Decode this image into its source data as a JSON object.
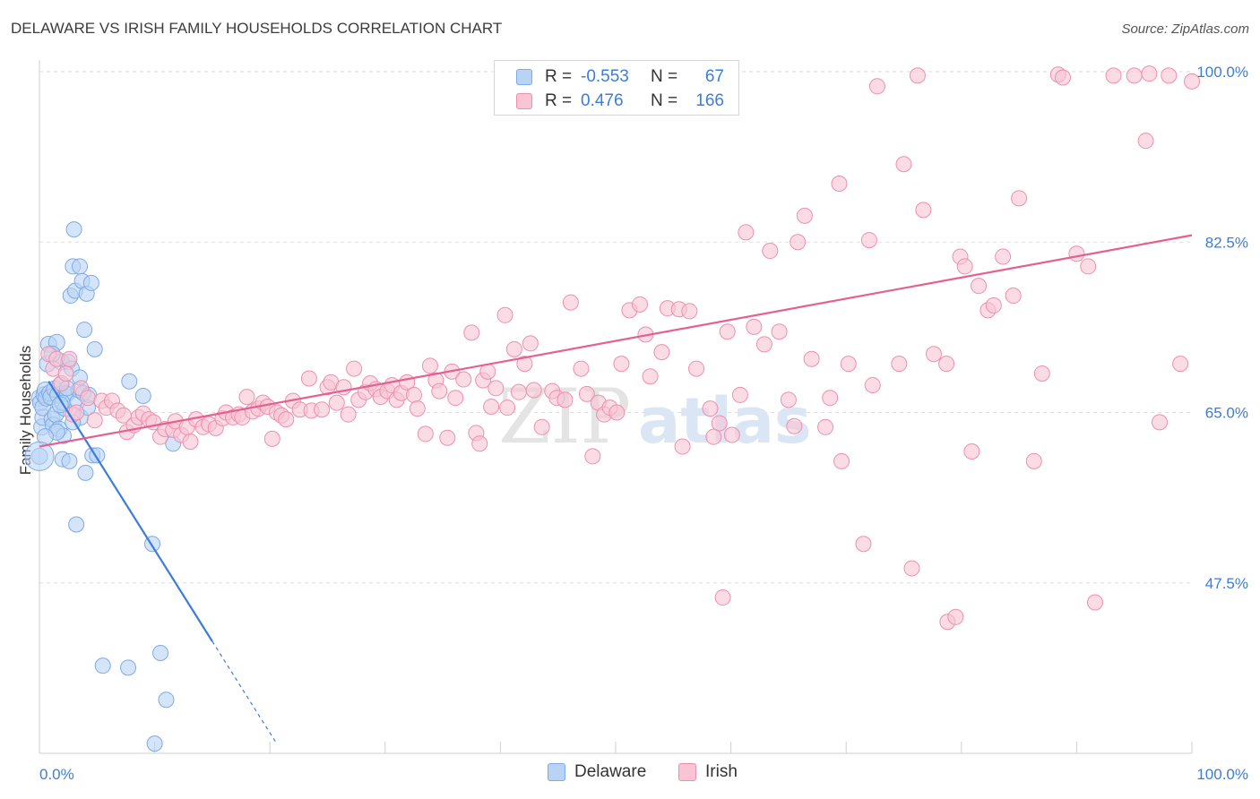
{
  "title": "DELAWARE VS IRISH FAMILY HOUSEHOLDS CORRELATION CHART",
  "source": "Source: ZipAtlas.com",
  "watermark": {
    "zip": "ZIP",
    "atlas": "atlas"
  },
  "legend": {
    "r_label": "R =",
    "n_label": "N =",
    "rows": [
      {
        "r": "-0.553",
        "n": "67",
        "fill": "#b9d3f5",
        "stroke": "#7eaae6"
      },
      {
        "r": "0.476",
        "n": "166",
        "fill": "#f9c4d4",
        "stroke": "#ee8fae"
      }
    ]
  },
  "chart_data": {
    "type": "scatter",
    "title": "DELAWARE VS IRISH FAMILY HOUSEHOLDS CORRELATION CHART",
    "xlabel": "",
    "ylabel": "Family Households",
    "xlim": [
      0,
      100
    ],
    "ylim": [
      30,
      100
    ],
    "x_tick_labels": [
      "0.0%",
      "100.0%"
    ],
    "y_ticks": [
      47.5,
      65.0,
      82.5,
      100.0
    ],
    "y_tick_labels": [
      "47.5%",
      "65.0%",
      "82.5%",
      "100.0%"
    ],
    "grid": true,
    "series": [
      {
        "name": "Delaware",
        "color": "#3b7dd8",
        "fill": "#b9d3f5",
        "stroke": "#7eaae6",
        "r": -0.553,
        "n": 67,
        "trend": {
          "x0": 0.8,
          "y0": 68.2,
          "x1": 15.0,
          "y1": 41.5,
          "dash_x1": 20.5
        },
        "points": [
          [
            0.0,
            60.5
          ],
          [
            0.0,
            66.5
          ],
          [
            0.1,
            66.0
          ],
          [
            0.2,
            63.5
          ],
          [
            0.3,
            64.5
          ],
          [
            0.3,
            65.5
          ],
          [
            0.4,
            66.8
          ],
          [
            0.5,
            67.3
          ],
          [
            0.6,
            66.5
          ],
          [
            0.7,
            70.0
          ],
          [
            0.8,
            72.0
          ],
          [
            0.9,
            67.0
          ],
          [
            1.0,
            66.6
          ],
          [
            1.1,
            64.3
          ],
          [
            1.2,
            63.7
          ],
          [
            1.3,
            67.4
          ],
          [
            1.4,
            64.8
          ],
          [
            1.5,
            72.2
          ],
          [
            1.6,
            66.8
          ],
          [
            1.7,
            63.3
          ],
          [
            1.8,
            67.8
          ],
          [
            1.9,
            70.2
          ],
          [
            2.0,
            60.2
          ],
          [
            2.1,
            62.6
          ],
          [
            2.2,
            65.4
          ],
          [
            2.3,
            67.0
          ],
          [
            2.4,
            66.9
          ],
          [
            2.5,
            70.2
          ],
          [
            2.6,
            60.0
          ],
          [
            2.7,
            77.0
          ],
          [
            2.8,
            69.5
          ],
          [
            2.9,
            80.0
          ],
          [
            3.0,
            83.8
          ],
          [
            3.1,
            77.5
          ],
          [
            3.2,
            53.5
          ],
          [
            3.3,
            66.1
          ],
          [
            3.4,
            67.3
          ],
          [
            3.5,
            80.0
          ],
          [
            3.6,
            64.5
          ],
          [
            3.7,
            78.5
          ],
          [
            3.8,
            67.0
          ],
          [
            3.9,
            73.5
          ],
          [
            4.0,
            58.8
          ],
          [
            4.1,
            77.2
          ],
          [
            4.2,
            65.5
          ],
          [
            4.3,
            66.8
          ],
          [
            4.5,
            78.3
          ],
          [
            4.6,
            60.6
          ],
          [
            4.8,
            71.5
          ],
          [
            5.0,
            60.6
          ],
          [
            5.5,
            39.0
          ],
          [
            7.7,
            38.8
          ],
          [
            7.8,
            68.2
          ],
          [
            9.0,
            66.7
          ],
          [
            9.8,
            51.5
          ],
          [
            10.0,
            31.0
          ],
          [
            10.5,
            40.3
          ],
          [
            11.0,
            35.5
          ],
          [
            11.6,
            61.8
          ],
          [
            1.5,
            63.0
          ],
          [
            2.0,
            66.0
          ],
          [
            2.4,
            67.5
          ],
          [
            1.1,
            71.0
          ],
          [
            0.5,
            62.5
          ],
          [
            1.8,
            65.8
          ],
          [
            2.9,
            64.0
          ],
          [
            3.5,
            68.6
          ]
        ]
      },
      {
        "name": "Irish",
        "color": "#e56090",
        "fill": "#f9c4d4",
        "stroke": "#ee8fae",
        "r": 0.476,
        "n": 166,
        "trend": {
          "x0": 0.0,
          "y0": 61.5,
          "x1": 100.0,
          "y1": 83.2
        },
        "points": [
          [
            0.8,
            71.0
          ],
          [
            1.2,
            69.5
          ],
          [
            1.5,
            70.5
          ],
          [
            1.9,
            68.0
          ],
          [
            2.3,
            69.0
          ],
          [
            2.6,
            70.5
          ],
          [
            2.9,
            64.8
          ],
          [
            3.2,
            65.0
          ],
          [
            3.6,
            67.5
          ],
          [
            4.2,
            66.5
          ],
          [
            4.8,
            64.2
          ],
          [
            5.4,
            66.2
          ],
          [
            5.8,
            65.5
          ],
          [
            6.3,
            66.2
          ],
          [
            6.8,
            65.2
          ],
          [
            7.3,
            64.7
          ],
          [
            7.6,
            63.0
          ],
          [
            8.2,
            63.7
          ],
          [
            8.6,
            64.5
          ],
          [
            9.0,
            64.9
          ],
          [
            9.5,
            64.3
          ],
          [
            9.9,
            64.0
          ],
          [
            10.5,
            62.5
          ],
          [
            10.9,
            63.3
          ],
          [
            11.6,
            63.2
          ],
          [
            11.8,
            64.1
          ],
          [
            12.3,
            62.7
          ],
          [
            12.8,
            63.5
          ],
          [
            13.1,
            62.0
          ],
          [
            13.6,
            64.3
          ],
          [
            14.2,
            63.5
          ],
          [
            14.7,
            63.8
          ],
          [
            15.3,
            63.4
          ],
          [
            15.9,
            64.4
          ],
          [
            16.2,
            65.0
          ],
          [
            16.8,
            64.5
          ],
          [
            17.3,
            64.8
          ],
          [
            17.6,
            64.5
          ],
          [
            18.0,
            66.6
          ],
          [
            18.5,
            65.1
          ],
          [
            19.0,
            65.4
          ],
          [
            19.4,
            66.0
          ],
          [
            19.8,
            65.6
          ],
          [
            20.2,
            62.3
          ],
          [
            20.6,
            65.0
          ],
          [
            21.0,
            64.7
          ],
          [
            21.4,
            64.3
          ],
          [
            22.0,
            66.2
          ],
          [
            22.6,
            65.3
          ],
          [
            23.4,
            68.5
          ],
          [
            23.6,
            65.2
          ],
          [
            24.5,
            65.3
          ],
          [
            25.0,
            67.6
          ],
          [
            25.3,
            68.1
          ],
          [
            25.8,
            66.0
          ],
          [
            26.4,
            67.6
          ],
          [
            26.8,
            64.8
          ],
          [
            27.3,
            69.5
          ],
          [
            27.7,
            66.3
          ],
          [
            28.3,
            67.1
          ],
          [
            28.7,
            68.0
          ],
          [
            29.2,
            67.4
          ],
          [
            29.6,
            66.6
          ],
          [
            30.2,
            67.2
          ],
          [
            30.6,
            67.8
          ],
          [
            31.0,
            66.3
          ],
          [
            31.4,
            67.0
          ],
          [
            31.9,
            68.1
          ],
          [
            32.5,
            66.8
          ],
          [
            32.8,
            65.4
          ],
          [
            33.5,
            62.8
          ],
          [
            33.9,
            69.8
          ],
          [
            34.4,
            68.3
          ],
          [
            34.7,
            67.2
          ],
          [
            35.4,
            62.4
          ],
          [
            35.8,
            69.2
          ],
          [
            36.1,
            66.5
          ],
          [
            36.8,
            68.4
          ],
          [
            37.5,
            73.2
          ],
          [
            37.9,
            62.9
          ],
          [
            38.2,
            61.8
          ],
          [
            38.5,
            68.3
          ],
          [
            38.9,
            69.2
          ],
          [
            39.2,
            65.6
          ],
          [
            39.6,
            67.5
          ],
          [
            40.4,
            75.0
          ],
          [
            40.6,
            65.5
          ],
          [
            41.2,
            71.5
          ],
          [
            41.6,
            67.1
          ],
          [
            42.1,
            70.0
          ],
          [
            42.6,
            72.1
          ],
          [
            42.9,
            67.3
          ],
          [
            43.6,
            63.5
          ],
          [
            44.5,
            67.2
          ],
          [
            44.9,
            66.5
          ],
          [
            45.6,
            66.3
          ],
          [
            46.1,
            76.3
          ],
          [
            47.0,
            69.5
          ],
          [
            47.5,
            66.9
          ],
          [
            48.5,
            66.0
          ],
          [
            49.0,
            64.8
          ],
          [
            49.5,
            65.5
          ],
          [
            50.1,
            65.0
          ],
          [
            50.5,
            70.0
          ],
          [
            51.2,
            75.5
          ],
          [
            52.1,
            76.1
          ],
          [
            52.6,
            73.0
          ],
          [
            53.0,
            68.7
          ],
          [
            54.0,
            71.2
          ],
          [
            54.5,
            75.7
          ],
          [
            55.5,
            75.6
          ],
          [
            55.8,
            61.5
          ],
          [
            56.4,
            75.4
          ],
          [
            57.0,
            69.5
          ],
          [
            58.2,
            65.4
          ],
          [
            58.5,
            62.5
          ],
          [
            59.0,
            63.9
          ],
          [
            59.7,
            73.3
          ],
          [
            60.1,
            62.7
          ],
          [
            60.8,
            66.8
          ],
          [
            61.3,
            83.5
          ],
          [
            62.0,
            73.8
          ],
          [
            62.9,
            72.0
          ],
          [
            63.4,
            81.6
          ],
          [
            64.2,
            73.3
          ],
          [
            65.0,
            66.3
          ],
          [
            65.5,
            63.6
          ],
          [
            65.8,
            82.5
          ],
          [
            66.4,
            85.2
          ],
          [
            67.0,
            70.5
          ],
          [
            68.2,
            63.5
          ],
          [
            68.6,
            66.5
          ],
          [
            69.4,
            88.5
          ],
          [
            69.6,
            60.0
          ],
          [
            70.2,
            70.0
          ],
          [
            71.5,
            51.5
          ],
          [
            72.0,
            82.7
          ],
          [
            72.3,
            67.8
          ],
          [
            72.7,
            98.5
          ],
          [
            74.6,
            70.0
          ],
          [
            75.0,
            90.5
          ],
          [
            75.7,
            49.0
          ],
          [
            76.2,
            99.6
          ],
          [
            76.7,
            85.8
          ],
          [
            77.6,
            71.0
          ],
          [
            78.7,
            70.0
          ],
          [
            78.8,
            43.5
          ],
          [
            79.5,
            44.0
          ],
          [
            79.9,
            81.0
          ],
          [
            80.3,
            80.0
          ],
          [
            80.9,
            61.0
          ],
          [
            81.5,
            78.0
          ],
          [
            82.3,
            75.5
          ],
          [
            82.8,
            76.0
          ],
          [
            83.6,
            81.0
          ],
          [
            84.5,
            77.0
          ],
          [
            85.0,
            87.0
          ],
          [
            86.3,
            60.0
          ],
          [
            87.0,
            69.0
          ],
          [
            88.4,
            99.7
          ],
          [
            88.8,
            99.4
          ],
          [
            90.0,
            81.3
          ],
          [
            91.0,
            80.0
          ],
          [
            91.6,
            45.5
          ],
          [
            93.2,
            99.6
          ],
          [
            95.0,
            99.6
          ],
          [
            96.0,
            92.9
          ],
          [
            96.3,
            99.8
          ],
          [
            97.2,
            64.0
          ],
          [
            98.0,
            99.6
          ],
          [
            99.0,
            70.0
          ],
          [
            100.0,
            99.0
          ],
          [
            48.0,
            60.5
          ],
          [
            59.3,
            46.0
          ]
        ]
      }
    ]
  }
}
